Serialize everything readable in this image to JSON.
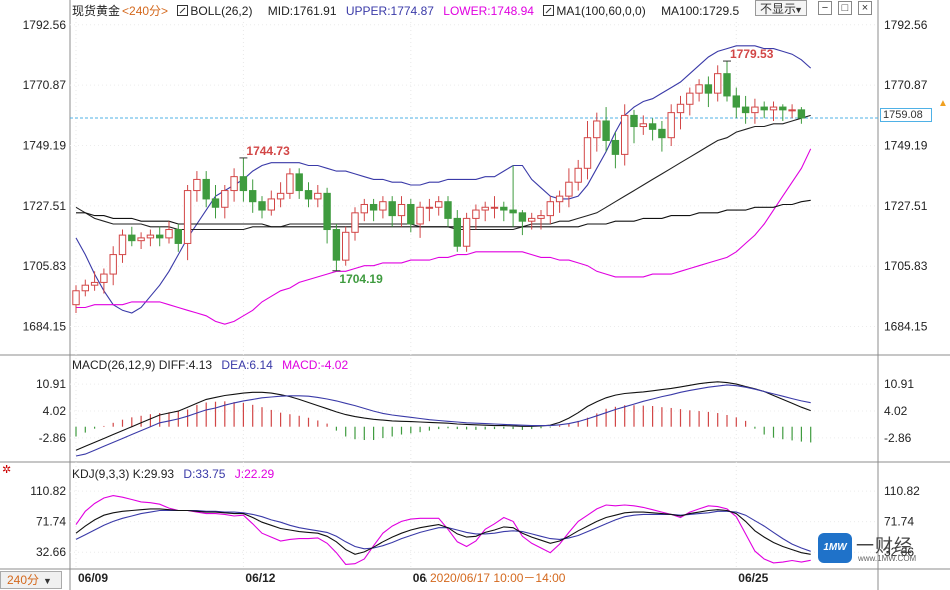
{
  "header": {
    "instrument": "现货黄金",
    "period_label": "<240分>",
    "boll_label": "BOLL(26,2)",
    "boll_mid": "MID:1761.91",
    "boll_upper": "UPPER:1774.87",
    "boll_lower": "LOWER:1748.94",
    "ma_label": "MA1(100,60,0,0)",
    "ma_value": "MA100:1729.5",
    "hide_label": "不显示",
    "buttons": [
      "−",
      "□",
      "×"
    ]
  },
  "macd_header": {
    "label": "MACD(26,12,9)",
    "diff": "DIFF:4.13",
    "dea": "DEA:6.14",
    "macd": "MACD:-4.02"
  },
  "kdj_header": {
    "label": "KDJ(9,3,3)",
    "k": "K:29.93",
    "d": "D:33.75",
    "j": "J:22.29"
  },
  "footer": {
    "period_tag": "240分",
    "tooltip": "2020/06/17 10:00－14:00",
    "current_price": "1759.08"
  },
  "watermark": {
    "logo": "1MW",
    "cn": "一财经",
    "url": "www.1MW.COM"
  },
  "colors": {
    "up": "#d24646",
    "down": "#3f9b3f",
    "upper": "#3a3aa8",
    "mid": "#222222",
    "lower": "#e000e0",
    "ma100": "#111111",
    "diff": "#111111",
    "dea": "#3a3aa8",
    "k": "#111111",
    "d": "#3a3aa8",
    "j": "#e000e0",
    "price_line": "#4fb1e6"
  },
  "chart_data": [
    {
      "type": "candlestick",
      "ylim": [
        1675,
        1795
      ],
      "yticks": [
        1792.56,
        1770.87,
        1749.19,
        1727.51,
        1705.83,
        1684.15
      ],
      "xticks": [
        {
          "index": 0,
          "label": "06/09"
        },
        {
          "index": 18,
          "label": "06/12"
        },
        {
          "index": 36,
          "label": "06/1"
        },
        {
          "index": 71,
          "label": "06/25"
        }
      ],
      "annotations": [
        {
          "label": "1744.73",
          "index": 18,
          "value": 1744.73
        },
        {
          "label": "1704.19",
          "index": 28,
          "value": 1704.19
        },
        {
          "label": "1779.53",
          "index": 70,
          "value": 1779.53
        }
      ],
      "last_price": 1759.08,
      "candles": [
        [
          1692,
          1697,
          1689,
          1699
        ],
        [
          1697,
          1699,
          1695,
          1701
        ],
        [
          1699,
          1700,
          1697,
          1704
        ],
        [
          1700,
          1703,
          1696,
          1705
        ],
        [
          1703,
          1710,
          1699,
          1713
        ],
        [
          1710,
          1717,
          1707,
          1719
        ],
        [
          1717,
          1715,
          1713,
          1720
        ],
        [
          1715,
          1716,
          1712,
          1718
        ],
        [
          1716,
          1717,
          1713,
          1719
        ],
        [
          1717,
          1716,
          1713,
          1720
        ],
        [
          1716,
          1719,
          1714,
          1722
        ],
        [
          1719,
          1714,
          1711,
          1721
        ],
        [
          1714,
          1733,
          1708,
          1735
        ],
        [
          1733,
          1737,
          1729,
          1740
        ],
        [
          1737,
          1730,
          1727,
          1740
        ],
        [
          1730,
          1727,
          1723,
          1735
        ],
        [
          1727,
          1733,
          1723,
          1735
        ],
        [
          1733,
          1738,
          1729,
          1741
        ],
        [
          1738,
          1733,
          1729,
          1744.73
        ],
        [
          1733,
          1729,
          1725,
          1737
        ],
        [
          1729,
          1726,
          1723,
          1731
        ],
        [
          1726,
          1730,
          1724,
          1733
        ],
        [
          1730,
          1732,
          1727,
          1736
        ],
        [
          1732,
          1739,
          1730,
          1741
        ],
        [
          1739,
          1733,
          1730,
          1741
        ],
        [
          1733,
          1730,
          1727,
          1736
        ],
        [
          1730,
          1732,
          1727,
          1735
        ],
        [
          1732,
          1719,
          1714,
          1734
        ],
        [
          1719,
          1708,
          1704.19,
          1721
        ],
        [
          1708,
          1718,
          1706,
          1720
        ],
        [
          1718,
          1725,
          1715,
          1727
        ],
        [
          1725,
          1728,
          1722,
          1730
        ],
        [
          1728,
          1726,
          1722,
          1730
        ],
        [
          1726,
          1729,
          1723,
          1731
        ],
        [
          1729,
          1724,
          1720,
          1731
        ],
        [
          1724,
          1728,
          1720,
          1731
        ],
        [
          1728,
          1721,
          1718,
          1730
        ],
        [
          1721,
          1727,
          1716,
          1729
        ],
        [
          1727,
          1727,
          1722,
          1730
        ],
        [
          1727,
          1729,
          1724,
          1731
        ],
        [
          1729,
          1723,
          1720,
          1731
        ],
        [
          1723,
          1713,
          1711,
          1726
        ],
        [
          1713,
          1723,
          1711,
          1725
        ],
        [
          1723,
          1726,
          1719,
          1728
        ],
        [
          1726,
          1727,
          1722,
          1729
        ],
        [
          1727,
          1727,
          1723,
          1731
        ],
        [
          1727,
          1726,
          1722,
          1729
        ],
        [
          1726,
          1725,
          1720,
          1742
        ],
        [
          1725,
          1722,
          1717,
          1726
        ],
        [
          1722,
          1723,
          1719,
          1725
        ],
        [
          1723,
          1724,
          1719,
          1726
        ],
        [
          1724,
          1729,
          1721,
          1731
        ],
        [
          1729,
          1731,
          1725,
          1733
        ],
        [
          1731,
          1736,
          1727,
          1741
        ],
        [
          1736,
          1741,
          1733,
          1744
        ],
        [
          1741,
          1752,
          1737,
          1758
        ],
        [
          1752,
          1758,
          1747,
          1761
        ],
        [
          1758,
          1751,
          1747,
          1763
        ],
        [
          1751,
          1746,
          1741,
          1754
        ],
        [
          1746,
          1760,
          1742,
          1764
        ],
        [
          1760,
          1756,
          1750,
          1762
        ],
        [
          1756,
          1757,
          1753,
          1760
        ],
        [
          1757,
          1755,
          1751,
          1759
        ],
        [
          1755,
          1752,
          1747,
          1758
        ],
        [
          1752,
          1761,
          1749,
          1764
        ],
        [
          1761,
          1764,
          1755,
          1767
        ],
        [
          1764,
          1768,
          1760,
          1770
        ],
        [
          1768,
          1771,
          1765,
          1773
        ],
        [
          1771,
          1768,
          1763,
          1774
        ],
        [
          1768,
          1775,
          1765,
          1778
        ],
        [
          1775,
          1767,
          1765,
          1779.53
        ],
        [
          1767,
          1763,
          1759,
          1770
        ],
        [
          1763,
          1761,
          1757,
          1767
        ],
        [
          1761,
          1763,
          1757,
          1766
        ],
        [
          1763,
          1762,
          1759,
          1765
        ],
        [
          1762,
          1763,
          1758,
          1765
        ],
        [
          1763,
          1762,
          1758,
          1764
        ],
        [
          1762,
          1762,
          1759,
          1764
        ],
        [
          1762,
          1759.08,
          1757,
          1763
        ]
      ],
      "boll_upper": [
        1716,
        1710,
        1703,
        1697,
        1692,
        1690,
        1689,
        1691,
        1695,
        1699,
        1704,
        1710,
        1716,
        1721,
        1726,
        1731,
        1733,
        1735,
        1737,
        1740,
        1742,
        1743,
        1743,
        1743,
        1743,
        1742,
        1742,
        1741,
        1740,
        1740,
        1739,
        1738,
        1737,
        1737,
        1736,
        1736,
        1735,
        1735,
        1736,
        1736,
        1737,
        1737,
        1737,
        1737,
        1738,
        1738,
        1740,
        1742,
        1742,
        1737,
        1734,
        1731,
        1730,
        1730,
        1731,
        1735,
        1741,
        1747,
        1754,
        1760,
        1763,
        1765,
        1766,
        1768,
        1770,
        1772,
        1775,
        1778,
        1781,
        1783,
        1784,
        1785,
        1785,
        1785,
        1784,
        1784,
        1783,
        1782,
        1780,
        1777
      ],
      "boll_mid": [
        1727,
        1725,
        1723,
        1722,
        1721,
        1721,
        1721,
        1721,
        1720,
        1720,
        1720,
        1719,
        1719,
        1719,
        1719,
        1719,
        1719,
        1719,
        1719,
        1720,
        1720,
        1720,
        1720,
        1721,
        1721,
        1721,
        1721,
        1721,
        1721,
        1721,
        1721,
        1721,
        1721,
        1721,
        1721,
        1721,
        1721,
        1720,
        1720,
        1720,
        1720,
        1719,
        1719,
        1719,
        1719,
        1719,
        1719,
        1719,
        1720,
        1721,
        1721,
        1721,
        1722,
        1722,
        1723,
        1724,
        1725,
        1727,
        1729,
        1731,
        1733,
        1735,
        1737,
        1739,
        1741,
        1743,
        1745,
        1747,
        1749,
        1751,
        1752,
        1754,
        1755,
        1756,
        1756,
        1757,
        1757,
        1758,
        1759,
        1760
      ],
      "boll_lower": [
        1691,
        1691,
        1692,
        1692,
        1692,
        1692,
        1693,
        1693,
        1693,
        1693,
        1692,
        1691,
        1690,
        1689,
        1688,
        1686,
        1685,
        1686,
        1688,
        1690,
        1693,
        1695,
        1697,
        1698,
        1700,
        1701,
        1702,
        1703,
        1704,
        1704,
        1705,
        1706,
        1706,
        1707,
        1707,
        1707,
        1708,
        1708,
        1708,
        1709,
        1709,
        1710,
        1710,
        1711,
        1711,
        1711,
        1711,
        1711,
        1711,
        1710,
        1709,
        1709,
        1708,
        1708,
        1707,
        1706,
        1704,
        1703,
        1702,
        1702,
        1702,
        1702,
        1703,
        1703,
        1703,
        1704,
        1705,
        1706,
        1707,
        1708,
        1709,
        1711,
        1714,
        1717,
        1721,
        1726,
        1731,
        1736,
        1741,
        1748
      ],
      "ma100": [
        1725,
        1725,
        1724,
        1724,
        1723,
        1723,
        1723,
        1722,
        1722,
        1722,
        1722,
        1721,
        1721,
        1721,
        1721,
        1721,
        1721,
        1721,
        1721,
        1721,
        1721,
        1720,
        1720,
        1720,
        1720,
        1720,
        1720,
        1720,
        1720,
        1720,
        1720,
        1720,
        1720,
        1720,
        1720,
        1720,
        1720,
        1720,
        1720,
        1720,
        1720,
        1720,
        1720,
        1720,
        1720,
        1720,
        1720,
        1720,
        1720,
        1720,
        1720,
        1720,
        1720,
        1720,
        1720,
        1721,
        1721,
        1721,
        1722,
        1722,
        1722,
        1723,
        1723,
        1723,
        1724,
        1724,
        1724,
        1725,
        1725,
        1725,
        1726,
        1726,
        1726,
        1727,
        1727,
        1727,
        1728,
        1728,
        1729,
        1729.5
      ]
    },
    {
      "type": "bar",
      "name": "MACD",
      "ylim": [
        -8,
        14
      ],
      "yticks": [
        10.91,
        4.02,
        -2.86
      ],
      "macd": [
        -2.5,
        -1.5,
        -0.5,
        0.2,
        1.0,
        1.8,
        2.4,
        2.8,
        3.2,
        3.5,
        3.7,
        3.9,
        4.4,
        5.6,
        6.2,
        6.4,
        6.5,
        6.3,
        6.1,
        5.6,
        5.0,
        4.3,
        3.6,
        3.2,
        2.8,
        2.3,
        1.6,
        0.8,
        -1.0,
        -2.5,
        -3.2,
        -3.4,
        -3.4,
        -2.9,
        -2.5,
        -2.0,
        -1.7,
        -1.4,
        -1.0,
        -0.6,
        -0.4,
        -0.6,
        -0.7,
        -0.8,
        -0.7,
        -0.6,
        -0.5,
        -0.6,
        -0.8,
        -0.6,
        -0.4,
        -0.2,
        0.3,
        0.8,
        1.5,
        2.3,
        3.4,
        4.6,
        5.1,
        5.5,
        5.5,
        5.4,
        5.3,
        5.0,
        4.8,
        4.5,
        4.2,
        4.0,
        3.8,
        3.5,
        3.0,
        2.4,
        1.5,
        -0.5,
        -2.0,
        -2.8,
        -3.2,
        -3.5,
        -3.8,
        -4.02
      ],
      "diff": [
        -6,
        -5,
        -4,
        -3,
        -2,
        -1,
        0,
        1,
        2,
        3,
        3.5,
        4,
        5,
        6,
        7,
        7.5,
        8,
        8.3,
        8.6,
        8.8,
        8.8,
        8.6,
        8.2,
        7.7,
        7.0,
        6.2,
        5.4,
        4.6,
        3.8,
        3.1,
        2.6,
        2.2,
        1.9,
        1.7,
        1.5,
        1.4,
        1.3,
        1.2,
        1.1,
        1.0,
        0.9,
        0.7,
        0.6,
        0.5,
        0.4,
        0.3,
        0.3,
        0.2,
        0.1,
        0.1,
        0.2,
        0.4,
        1.1,
        2.2,
        3.6,
        5.2,
        6.4,
        7.4,
        8.1,
        8.5,
        8.7,
        8.9,
        9.2,
        9.5,
        9.8,
        10.2,
        10.6,
        11.0,
        11.3,
        11.5,
        11.3,
        10.9,
        10.3,
        9.7,
        9.0,
        8.0,
        7.0,
        6.0,
        5.0,
        4.13
      ],
      "dea": [
        -7.5,
        -7.0,
        -6.0,
        -5.0,
        -4.0,
        -3.0,
        -2.0,
        -1.0,
        0.0,
        1.0,
        1.5,
        2.0,
        2.7,
        3.5,
        4.3,
        4.8,
        5.5,
        6.1,
        6.6,
        7.0,
        7.4,
        7.6,
        7.8,
        7.9,
        7.9,
        7.8,
        7.5,
        7.1,
        6.6,
        6.0,
        5.4,
        4.7,
        4.0,
        3.4,
        3.0,
        2.7,
        2.4,
        2.1,
        1.8,
        1.6,
        1.4,
        1.2,
        1.0,
        0.9,
        0.8,
        0.7,
        0.6,
        0.5,
        0.4,
        0.3,
        0.3,
        0.3,
        0.5,
        0.8,
        1.3,
        2.0,
        2.8,
        3.6,
        4.4,
        5.1,
        5.8,
        6.5,
        7.1,
        7.7,
        8.2,
        8.8,
        9.3,
        9.7,
        10.1,
        10.4,
        10.7,
        10.5,
        10.1,
        9.6,
        9.0,
        8.4,
        7.8,
        7.2,
        6.6,
        6.14
      ]
    },
    {
      "type": "line",
      "name": "KDJ",
      "ylim": [
        15,
        125
      ],
      "yticks": [
        110.82,
        71.74,
        32.66
      ],
      "k": [
        57,
        66,
        74,
        80,
        83,
        85,
        86,
        87,
        88,
        88,
        87,
        86,
        86,
        85,
        84,
        84,
        83,
        82,
        82,
        77,
        71,
        67,
        63,
        61,
        59,
        58,
        57,
        53,
        46,
        36,
        30,
        33,
        39,
        46,
        52,
        57,
        61,
        64,
        66,
        68,
        64,
        56,
        52,
        53,
        58,
        61,
        65,
        64,
        57,
        52,
        48,
        44,
        47,
        53,
        60,
        66,
        72,
        77,
        80,
        83,
        84,
        84,
        83,
        82,
        81,
        79,
        82,
        84,
        86,
        87,
        86,
        82,
        72,
        60,
        52,
        45,
        40,
        36,
        32,
        29.93
      ],
      "d": [
        49,
        55,
        61,
        67,
        72,
        76,
        79,
        82,
        84,
        86,
        86,
        86,
        86,
        86,
        85,
        85,
        84,
        84,
        83,
        81,
        78,
        74,
        71,
        67,
        64,
        62,
        60,
        58,
        53,
        46,
        40,
        37,
        38,
        41,
        45,
        50,
        54,
        58,
        61,
        64,
        64,
        61,
        58,
        56,
        56,
        57,
        59,
        60,
        59,
        56,
        53,
        50,
        49,
        51,
        54,
        59,
        64,
        69,
        74,
        78,
        80,
        81,
        81,
        81,
        81,
        80,
        81,
        82,
        83,
        85,
        85,
        84,
        80,
        73,
        66,
        58,
        50,
        43,
        38,
        33.75
      ],
      "j": [
        68,
        85,
        95,
        102,
        105,
        103,
        100,
        97,
        96,
        94,
        89,
        86,
        86,
        84,
        82,
        82,
        81,
        79,
        80,
        69,
        57,
        52,
        47,
        49,
        50,
        50,
        51,
        44,
        32,
        17,
        18,
        24,
        41,
        57,
        66,
        72,
        75,
        76,
        76,
        76,
        62,
        46,
        40,
        47,
        62,
        69,
        77,
        72,
        53,
        44,
        38,
        32,
        43,
        58,
        72,
        80,
        88,
        93,
        92,
        93,
        92,
        90,
        87,
        84,
        81,
        77,
        84,
        88,
        92,
        91,
        88,
        78,
        56,
        34,
        24,
        19,
        20,
        22,
        20,
        22.29
      ]
    }
  ]
}
